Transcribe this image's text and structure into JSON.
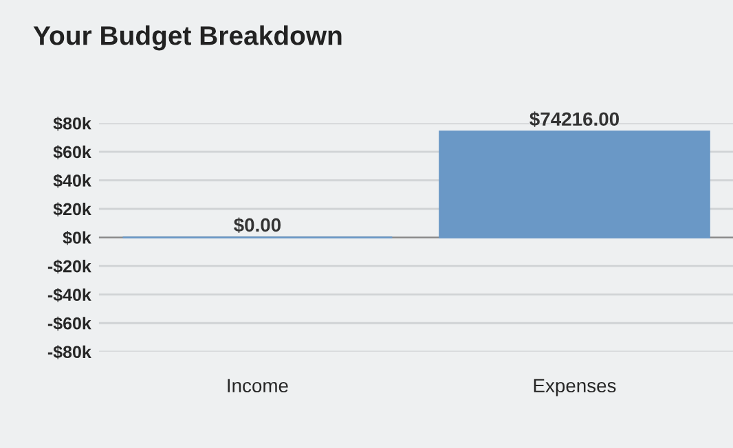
{
  "chart_data": {
    "type": "bar",
    "title": "Your Budget Breakdown",
    "categories": [
      "Income",
      "Expenses"
    ],
    "values": [
      0,
      74216
    ],
    "value_labels": [
      "$0.00",
      "$74216.00"
    ],
    "color": "#6a98c6",
    "ylim": [
      -80000,
      80000
    ],
    "yticks": [
      {
        "value": 80000,
        "label": "$80k"
      },
      {
        "value": 60000,
        "label": "$60k"
      },
      {
        "value": 40000,
        "label": "$40k"
      },
      {
        "value": 20000,
        "label": "$20k"
      },
      {
        "value": 0,
        "label": "$0k"
      },
      {
        "value": -20000,
        "label": "-$20k"
      },
      {
        "value": -40000,
        "label": "-$40k"
      },
      {
        "value": -60000,
        "label": "-$60k"
      },
      {
        "value": -80000,
        "label": "-$80k"
      }
    ],
    "grid": "y"
  }
}
